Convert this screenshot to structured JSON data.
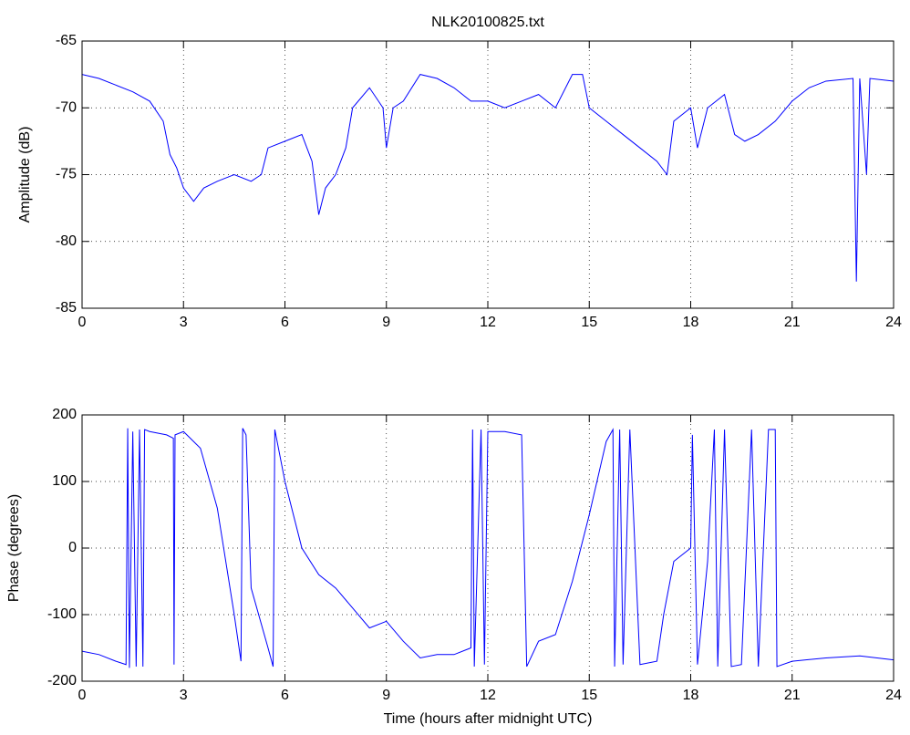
{
  "chart_data": [
    {
      "type": "line",
      "title": "NLK20100825.txt",
      "ylabel": "Amplitude (dB)",
      "xlim": [
        0,
        24
      ],
      "xticks": [
        0,
        3,
        6,
        9,
        12,
        15,
        18,
        21,
        24
      ],
      "ylim": [
        -85,
        -65
      ],
      "yticks": [
        -85,
        -80,
        -75,
        -70,
        -65
      ],
      "grid": true,
      "series": [
        {
          "color": "#0000ff",
          "x": [
            0,
            0.5,
            1,
            1.5,
            2,
            2.4,
            2.6,
            2.8,
            3,
            3.3,
            3.6,
            4,
            4.5,
            5,
            5.3,
            5.5,
            6,
            6.5,
            6.8,
            7,
            7.2,
            7.5,
            7.8,
            8,
            8.5,
            8.9,
            9,
            9.2,
            9.5,
            10,
            10.5,
            11,
            11.5,
            12,
            12.5,
            13,
            13.5,
            14,
            14.5,
            14.8,
            15,
            15.5,
            16,
            16.5,
            17,
            17.3,
            17.5,
            18,
            18.2,
            18.5,
            19,
            19.3,
            19.6,
            20,
            20.5,
            21,
            21.5,
            22,
            22.8,
            22.9,
            23,
            23.2,
            23.3,
            24
          ],
          "values": [
            -67.5,
            -67.8,
            -68.3,
            -68.8,
            -69.5,
            -71,
            -73.5,
            -74.5,
            -76,
            -77,
            -76,
            -75.5,
            -75,
            -75.5,
            -75,
            -73,
            -72.5,
            -72,
            -74,
            -78,
            -76,
            -75,
            -73,
            -70,
            -68.5,
            -70,
            -73,
            -70,
            -69.5,
            -67.5,
            -67.8,
            -68.5,
            -69.5,
            -69.5,
            -70,
            -69.5,
            -69,
            -70,
            -67.5,
            -67.5,
            -70,
            -71,
            -72,
            -73,
            -74,
            -75,
            -71,
            -70,
            -73,
            -70,
            -69,
            -72,
            -72.5,
            -72,
            -71,
            -69.5,
            -68.5,
            -68,
            -67.8,
            -83,
            -67.8,
            -75,
            -67.8,
            -68
          ]
        }
      ]
    },
    {
      "type": "line",
      "xlabel": "Time (hours after midnight UTC)",
      "ylabel": "Phase (degrees)",
      "xlim": [
        0,
        24
      ],
      "xticks": [
        0,
        3,
        6,
        9,
        12,
        15,
        18,
        21,
        24
      ],
      "ylim": [
        -200,
        200
      ],
      "yticks": [
        -200,
        -100,
        0,
        100,
        200
      ],
      "grid": true,
      "series": [
        {
          "color": "#0000ff",
          "x": [
            0,
            0.5,
            1,
            1.3,
            1.35,
            1.4,
            1.5,
            1.6,
            1.7,
            1.8,
            1.85,
            2,
            2.5,
            2.7,
            2.72,
            2.75,
            3,
            3.5,
            4,
            4.5,
            4.7,
            4.75,
            4.85,
            5,
            5.5,
            5.65,
            5.7,
            6,
            6.5,
            7,
            7.5,
            8,
            8.5,
            9,
            9.5,
            10,
            10.5,
            11,
            11.5,
            11.55,
            11.6,
            11.8,
            11.9,
            12,
            12.5,
            13,
            13.15,
            13.5,
            14,
            14.5,
            15,
            15.5,
            15.7,
            15.75,
            15.9,
            16,
            16.2,
            16.5,
            17,
            17.2,
            17.5,
            18,
            18.05,
            18.2,
            18.5,
            18.7,
            18.8,
            19,
            19.2,
            19.5,
            19.8,
            20,
            20.3,
            20.5,
            20.55,
            21,
            22,
            23,
            24
          ],
          "values": [
            -155,
            -160,
            -170,
            -175,
            180,
            -180,
            175,
            -178,
            178,
            -178,
            178,
            175,
            170,
            165,
            -175,
            170,
            175,
            150,
            60,
            -100,
            -170,
            180,
            170,
            -60,
            -150,
            -178,
            178,
            100,
            0,
            -40,
            -60,
            -90,
            -120,
            -110,
            -140,
            -165,
            -160,
            -160,
            -150,
            178,
            -178,
            178,
            -175,
            175,
            175,
            170,
            -178,
            -140,
            -130,
            -50,
            50,
            160,
            178,
            -178,
            178,
            -175,
            178,
            -175,
            -170,
            -100,
            -20,
            0,
            170,
            -175,
            -20,
            178,
            -178,
            178,
            -178,
            -175,
            178,
            -178,
            178,
            178,
            -178,
            -170,
            -165,
            -162,
            -168
          ]
        }
      ]
    }
  ]
}
